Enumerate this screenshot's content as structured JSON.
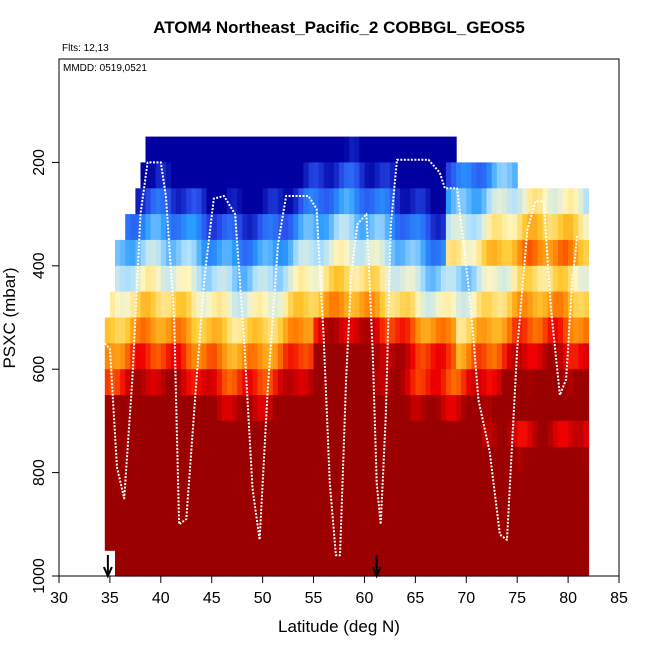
{
  "chart_data": {
    "type": "heatmap",
    "title": "ATOM4 Northeast_Pacific_2 COBBGL_GEOS5",
    "annotations": [
      "Flts: 12,13",
      "MMDD: 0519,0521"
    ],
    "xlabel": "Latitude (deg N)",
    "ylabel": "PSXC (mbar)",
    "xlim": [
      30,
      85
    ],
    "ylim": [
      1000,
      0
    ],
    "x_ticks": [
      30,
      35,
      40,
      45,
      50,
      55,
      60,
      65,
      70,
      75,
      80,
      85
    ],
    "y_ticks": [
      200,
      400,
      600,
      800,
      1000
    ],
    "grid": false,
    "legend": "none",
    "heatmap": {
      "pressure_levels": [
        175,
        225,
        275,
        325,
        375,
        425,
        475,
        525,
        575,
        625,
        675,
        725,
        775,
        825,
        875,
        925,
        975
      ],
      "colormap": [
        "#0000a0",
        "#2a52f0",
        "#2a9bff",
        "#aee0ff",
        "#fff6c0",
        "#ffc830",
        "#ff7a00",
        "#f00000",
        "#9a0000"
      ],
      "column_top_by_latitude": [
        [
          34.8,
          525
        ],
        [
          35.6,
          350
        ],
        [
          37,
          300
        ],
        [
          38.5,
          175
        ],
        [
          46,
          175
        ],
        [
          60,
          175
        ],
        [
          69,
          175
        ],
        [
          70,
          225
        ],
        [
          75,
          225
        ],
        [
          76,
          275
        ],
        [
          82,
          275
        ]
      ],
      "column_bottom_by_latitude": [
        [
          34.5,
          925
        ],
        [
          35.5,
          975
        ],
        [
          41.5,
          975
        ],
        [
          42,
          1000
        ],
        [
          79.5,
          1000
        ],
        [
          80,
          975
        ],
        [
          81,
          975
        ]
      ]
    },
    "aircraft_track": {
      "color": "#ffffff",
      "points": [
        [
          34.5,
          550
        ],
        [
          35,
          560
        ],
        [
          35.7,
          790
        ],
        [
          36.4,
          850
        ],
        [
          37.2,
          620
        ],
        [
          38,
          300
        ],
        [
          38.7,
          200
        ],
        [
          40,
          200
        ],
        [
          40.5,
          265
        ],
        [
          41.3,
          500
        ],
        [
          41.8,
          900
        ],
        [
          42.5,
          890
        ],
        [
          43.5,
          620
        ],
        [
          44.3,
          420
        ],
        [
          45.2,
          270
        ],
        [
          46.2,
          265
        ],
        [
          47.3,
          300
        ],
        [
          48.2,
          550
        ],
        [
          49,
          830
        ],
        [
          49.7,
          930
        ],
        [
          50.5,
          640
        ],
        [
          51.5,
          360
        ],
        [
          52.3,
          265
        ],
        [
          54.5,
          265
        ],
        [
          55.3,
          290
        ],
        [
          56,
          540
        ],
        [
          56.6,
          820
        ],
        [
          57.2,
          960
        ],
        [
          57.6,
          960
        ],
        [
          58.2,
          620
        ],
        [
          58.7,
          420
        ],
        [
          59.3,
          320
        ],
        [
          60.2,
          300
        ],
        [
          60.8,
          560
        ],
        [
          61.2,
          820
        ],
        [
          61.6,
          900
        ],
        [
          62.1,
          690
        ],
        [
          62.6,
          320
        ],
        [
          63.2,
          195
        ],
        [
          66.3,
          195
        ],
        [
          67.4,
          220
        ],
        [
          67.9,
          250
        ],
        [
          69.1,
          250
        ],
        [
          70.4,
          470
        ],
        [
          71.2,
          660
        ],
        [
          72.3,
          760
        ],
        [
          73.3,
          920
        ],
        [
          74,
          930
        ],
        [
          74.4,
          780
        ],
        [
          75,
          560
        ],
        [
          76,
          330
        ],
        [
          76.8,
          275
        ],
        [
          77.6,
          275
        ],
        [
          78.3,
          480
        ],
        [
          79.2,
          650
        ],
        [
          79.8,
          620
        ],
        [
          80.4,
          430
        ],
        [
          80.9,
          340
        ]
      ]
    },
    "flight_start_markers": [
      34.8,
      61.2
    ]
  }
}
